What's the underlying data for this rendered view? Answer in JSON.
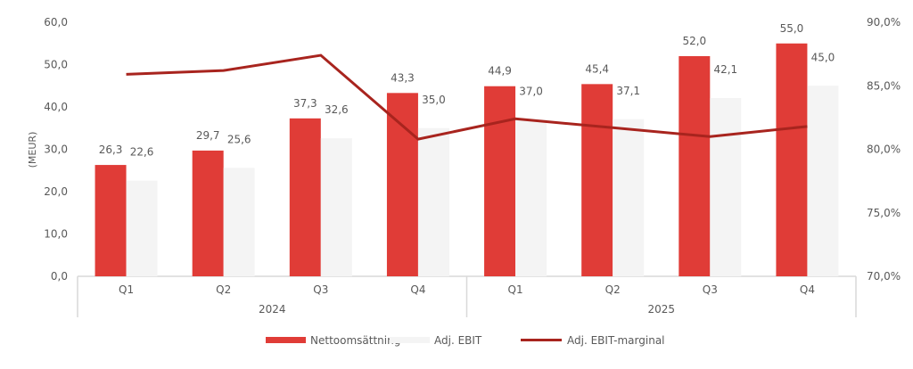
{
  "chart_data": {
    "type": "bar+line",
    "categories": [
      "Q1",
      "Q2",
      "Q3",
      "Q4",
      "Q1",
      "Q2",
      "Q3",
      "Q4"
    ],
    "groups": [
      {
        "label": "2024",
        "span": 4
      },
      {
        "label": "2025",
        "span": 4
      }
    ],
    "series": [
      {
        "name": "Nettoomsättning",
        "type": "bar",
        "axis": "left",
        "color": "#E03C37",
        "values": [
          26.3,
          29.7,
          37.3,
          43.3,
          44.9,
          45.4,
          52.0,
          55.0
        ],
        "labels": [
          "26,3",
          "29,7",
          "37,3",
          "43,3",
          "44,9",
          "45,4",
          "52,0",
          "55,0"
        ]
      },
      {
        "name": "Adj. EBIT",
        "type": "bar",
        "axis": "left",
        "color": "#F4F4F4",
        "values": [
          22.6,
          25.6,
          32.6,
          35.0,
          37.0,
          37.1,
          42.1,
          45.0
        ],
        "labels": [
          "22,6",
          "25,6",
          "32,6",
          "35,0",
          "37,0",
          "37,1",
          "42,1",
          "45,0"
        ]
      },
      {
        "name": "Adj. EBIT-marginal",
        "type": "line",
        "axis": "right",
        "color": "#A8241E",
        "values": [
          85.9,
          86.2,
          87.4,
          80.8,
          82.4,
          81.7,
          81.0,
          81.8
        ]
      }
    ],
    "ylabel": "(MEUR)",
    "ylim": [
      0,
      60
    ],
    "yticks": [
      "0,0",
      "10,0",
      "20,0",
      "30,0",
      "40,0",
      "50,0",
      "60,0"
    ],
    "y2lim": [
      70,
      90
    ],
    "y2ticks": [
      "70,0%",
      "75,0%",
      "80,0%",
      "85,0%",
      "90,0%"
    ],
    "grid": false,
    "legend": "bottom"
  }
}
